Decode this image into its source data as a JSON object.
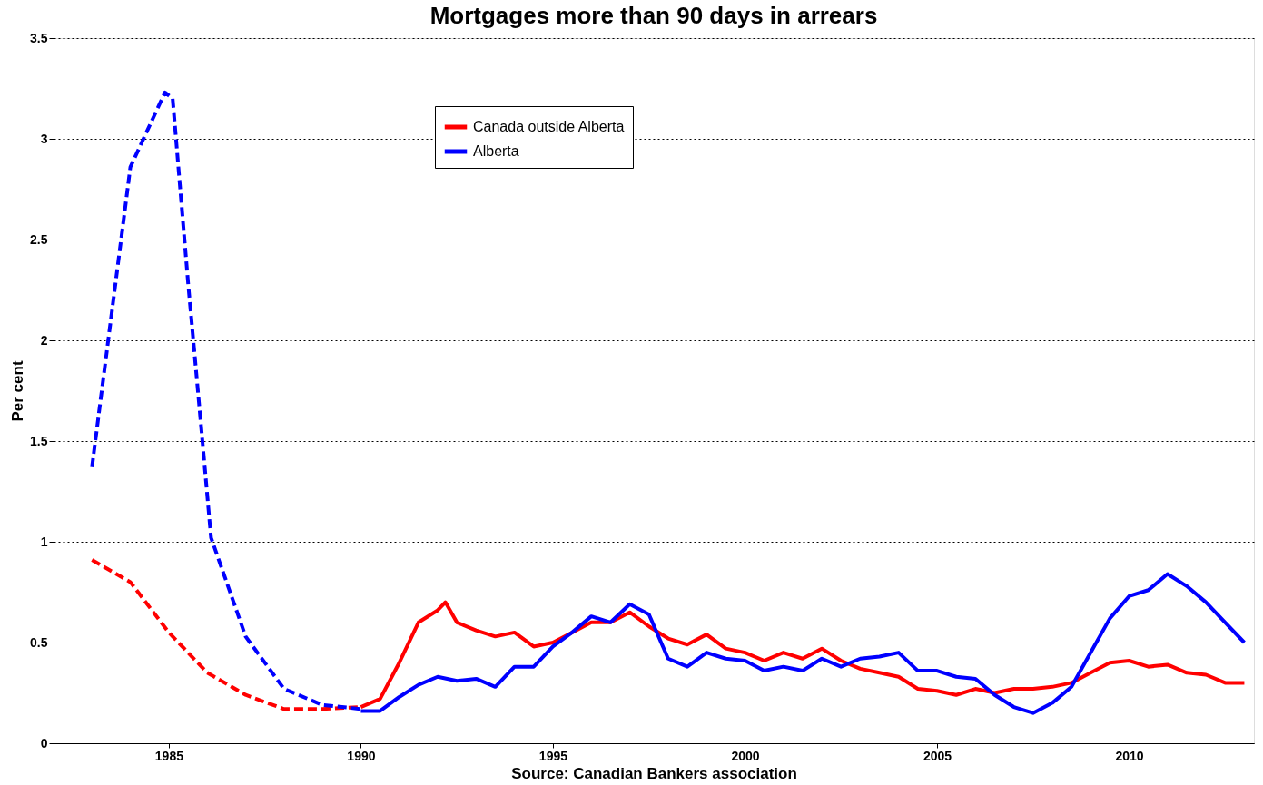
{
  "chart_data": {
    "type": "line",
    "title": "Mortgages more than 90 days in arrears",
    "ylabel": "Per cent",
    "annotations": [
      "Source: Canadian Bankers association"
    ],
    "xlim": [
      1982,
      2013.25
    ],
    "xticks": [
      1985,
      1990,
      1995,
      2000,
      2005,
      2010
    ],
    "ylim": [
      0,
      3.5
    ],
    "yticks": [
      0,
      0.5,
      1,
      1.5,
      2,
      2.5,
      3,
      3.5
    ],
    "grid": "y",
    "legend": "top",
    "line_style": "solid",
    "series": [
      {
        "name": "Canada outside Alberta",
        "color": "#ff0000",
        "x": [
          1990,
          1990.5,
          1991,
          1991.5,
          1992,
          1992.2,
          1992.5,
          1993,
          1993.5,
          1994,
          1994.5,
          1995,
          1995.5,
          1996,
          1996.5,
          1997,
          1997.5,
          1998,
          1998.5,
          1999,
          1999.5,
          2000,
          2000.5,
          2001,
          2001.5,
          2002,
          2002.5,
          2003,
          2003.5,
          2004,
          2004.5,
          2005,
          2005.5,
          2006,
          2006.5,
          2007,
          2007.5,
          2008,
          2008.5,
          2009,
          2009.5,
          2010,
          2010.5,
          2011,
          2011.5,
          2012,
          2012.5,
          2013
        ],
        "values": [
          0.18,
          0.22,
          0.4,
          0.6,
          0.66,
          0.7,
          0.6,
          0.56,
          0.53,
          0.55,
          0.48,
          0.5,
          0.55,
          0.6,
          0.6,
          0.65,
          0.58,
          0.52,
          0.49,
          0.54,
          0.47,
          0.45,
          0.41,
          0.45,
          0.42,
          0.47,
          0.41,
          0.37,
          0.35,
          0.33,
          0.27,
          0.26,
          0.24,
          0.27,
          0.25,
          0.27,
          0.27,
          0.28,
          0.3,
          0.35,
          0.4,
          0.41,
          0.38,
          0.39,
          0.35,
          0.34,
          0.3,
          0.3
        ]
      },
      {
        "name": "Alberta",
        "color": "#0000ff",
        "x": [
          1990,
          1990.5,
          1991,
          1991.5,
          1992,
          1992.5,
          1993,
          1993.5,
          1994,
          1994.5,
          1995,
          1995.5,
          1996,
          1996.5,
          1997,
          1997.5,
          1998,
          1998.5,
          1999,
          1999.5,
          2000,
          2000.5,
          2001,
          2001.5,
          2002,
          2002.5,
          2003,
          2003.5,
          2004,
          2004.5,
          2005,
          2005.5,
          2006,
          2006.5,
          2007,
          2007.5,
          2008,
          2008.5,
          2009,
          2009.5,
          2010,
          2010.5,
          2011,
          2011.5,
          2012,
          2012.5,
          2013
        ],
        "values": [
          0.16,
          0.16,
          0.23,
          0.29,
          0.33,
          0.31,
          0.32,
          0.28,
          0.38,
          0.38,
          0.48,
          0.55,
          0.63,
          0.6,
          0.69,
          0.64,
          0.42,
          0.38,
          0.45,
          0.42,
          0.41,
          0.36,
          0.38,
          0.36,
          0.42,
          0.38,
          0.42,
          0.43,
          0.45,
          0.36,
          0.36,
          0.33,
          0.32,
          0.24,
          0.18,
          0.15,
          0.2,
          0.28,
          0.45,
          0.62,
          0.73,
          0.76,
          0.84,
          0.78,
          0.7,
          0.6,
          0.5
        ]
      },
      {
        "color": "#ff0000",
        "line_style": "dashed",
        "x": [
          1983,
          1984,
          1985,
          1986,
          1987,
          1988,
          1989,
          1990
        ],
        "values": [
          0.91,
          0.8,
          0.55,
          0.35,
          0.24,
          0.17,
          0.17,
          0.18
        ]
      },
      {
        "color": "#0000ff",
        "line_style": "dashed",
        "x": [
          1983,
          1984,
          1984.9,
          1985.1,
          1985.5,
          1985.8,
          1986.1,
          1987,
          1988,
          1989,
          1990
        ],
        "values": [
          1.37,
          2.86,
          3.23,
          3.2,
          2.29,
          1.66,
          1.02,
          0.53,
          0.27,
          0.19,
          0.17
        ]
      }
    ]
  }
}
